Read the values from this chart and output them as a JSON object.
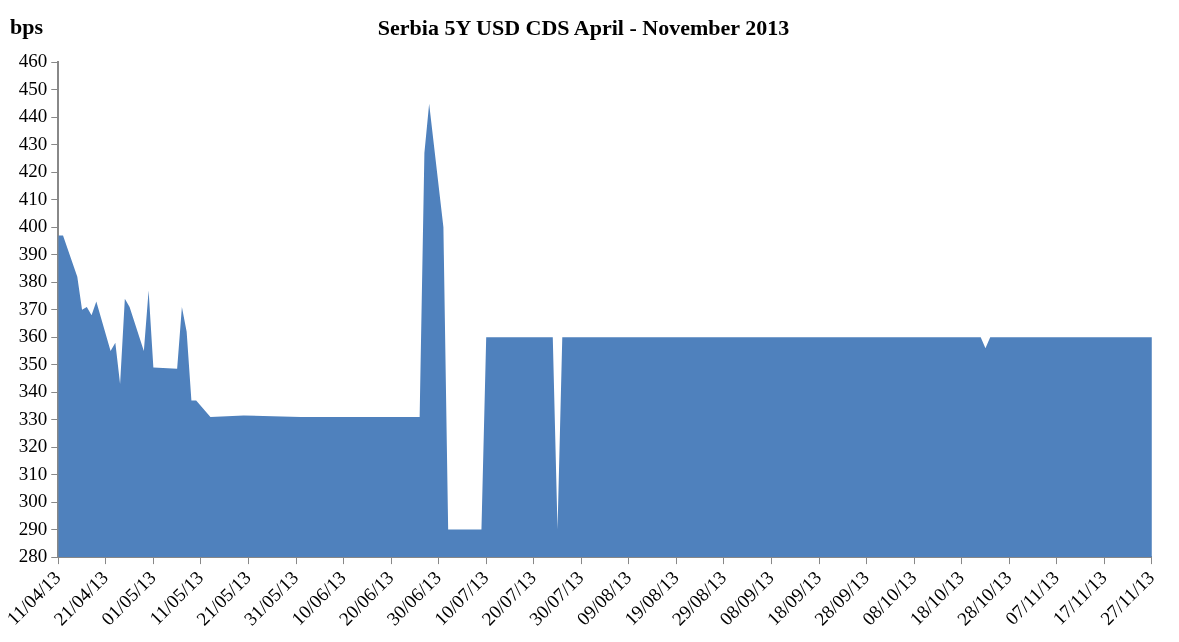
{
  "chart_data": {
    "type": "area",
    "title": "Serbia 5Y USD CDS April - November 2013",
    "ylabel": "bps",
    "x": [
      "2013-04-11",
      "2013-04-12",
      "2013-04-15",
      "2013-04-16",
      "2013-04-17",
      "2013-04-18",
      "2013-04-19",
      "2013-04-22",
      "2013-04-23",
      "2013-04-24",
      "2013-04-25",
      "2013-04-26",
      "2013-04-29",
      "2013-04-30",
      "2013-05-01",
      "2013-05-06",
      "2013-05-07",
      "2013-05-08",
      "2013-05-09",
      "2013-05-10",
      "2013-05-13",
      "2013-05-20",
      "2013-06-01",
      "2013-06-14",
      "2013-06-20",
      "2013-06-26",
      "2013-06-27",
      "2013-06-28",
      "2013-07-01",
      "2013-07-02",
      "2013-07-09",
      "2013-07-10",
      "2013-07-24",
      "2013-07-25",
      "2013-07-26",
      "2013-10-22",
      "2013-10-23",
      "2013-10-24",
      "2013-11-27"
    ],
    "series": [
      {
        "color": "#4f81bd",
        "values": [
          397,
          397,
          382,
          370,
          371,
          368,
          373,
          355,
          358,
          343,
          374,
          371,
          355,
          377,
          349,
          348.5,
          371,
          362,
          337,
          337,
          331,
          331.5,
          331,
          331,
          331,
          331,
          427,
          445,
          400,
          290,
          290,
          360,
          360,
          290,
          360,
          360,
          356,
          360,
          360
        ]
      }
    ],
    "xlim": [
      "2013-04-11",
      "2013-11-27"
    ],
    "xticks": [
      {
        "value": "2013-04-11",
        "label": "11/04/13"
      },
      {
        "value": "2013-04-21",
        "label": "21/04/13"
      },
      {
        "value": "2013-05-01",
        "label": "01/05/13"
      },
      {
        "value": "2013-05-11",
        "label": "11/05/13"
      },
      {
        "value": "2013-05-21",
        "label": "21/05/13"
      },
      {
        "value": "2013-05-31",
        "label": "31/05/13"
      },
      {
        "value": "2013-06-10",
        "label": "10/06/13"
      },
      {
        "value": "2013-06-20",
        "label": "20/06/13"
      },
      {
        "value": "2013-06-30",
        "label": "30/06/13"
      },
      {
        "value": "2013-07-10",
        "label": "10/07/13"
      },
      {
        "value": "2013-07-20",
        "label": "20/07/13"
      },
      {
        "value": "2013-07-30",
        "label": "30/07/13"
      },
      {
        "value": "2013-08-09",
        "label": "09/08/13"
      },
      {
        "value": "2013-08-19",
        "label": "19/08/13"
      },
      {
        "value": "2013-08-29",
        "label": "29/08/13"
      },
      {
        "value": "2013-09-08",
        "label": "08/09/13"
      },
      {
        "value": "2013-09-18",
        "label": "18/09/13"
      },
      {
        "value": "2013-09-28",
        "label": "28/09/13"
      },
      {
        "value": "2013-10-08",
        "label": "08/10/13"
      },
      {
        "value": "2013-10-18",
        "label": "18/10/13"
      },
      {
        "value": "2013-10-28",
        "label": "28/10/13"
      },
      {
        "value": "2013-11-07",
        "label": "07/11/13"
      },
      {
        "value": "2013-11-17",
        "label": "17/11/13"
      },
      {
        "value": "2013-11-27",
        "label": "27/11/13"
      }
    ],
    "ylim": [
      280,
      460
    ],
    "yticks": [
      280,
      290,
      300,
      310,
      320,
      330,
      340,
      350,
      360,
      370,
      380,
      390,
      400,
      410,
      420,
      430,
      440,
      450,
      460
    ],
    "grid": false,
    "legend": false
  }
}
